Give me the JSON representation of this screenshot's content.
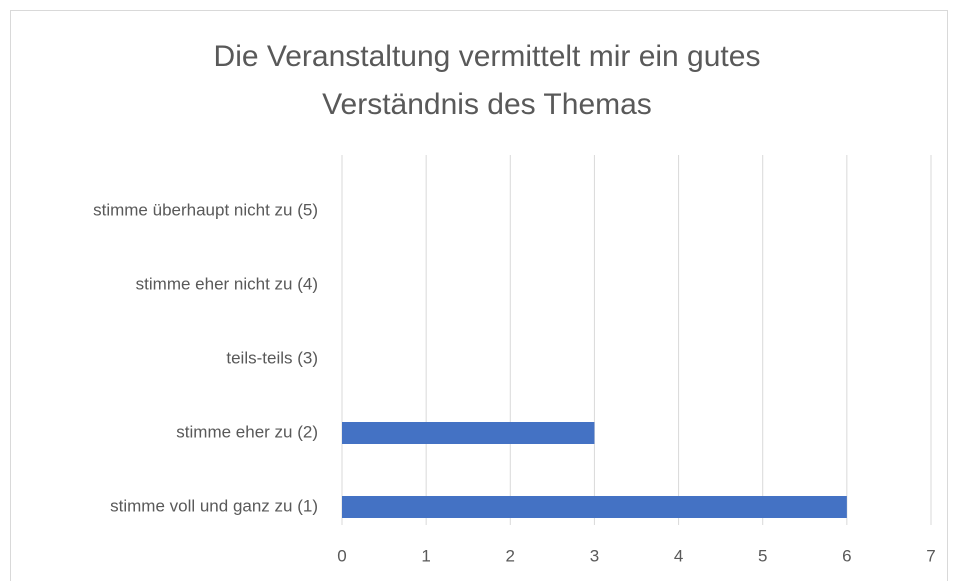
{
  "chart_data": {
    "type": "bar",
    "orientation": "horizontal",
    "title": [
      "Die Veranstaltung vermittelt mir ein gutes",
      "Verständnis des Themas"
    ],
    "categories": [
      "stimme überhaupt nicht zu (5)",
      "stimme eher nicht zu (4)",
      "teils-teils (3)",
      "stimme eher zu (2)",
      "stimme voll und ganz zu (1)"
    ],
    "values": [
      0,
      0,
      0,
      3,
      6
    ],
    "color": "#4472c4",
    "xlim": [
      0,
      7
    ],
    "xticks": [
      0,
      1,
      2,
      3,
      4,
      5,
      6,
      7
    ],
    "grid": true
  }
}
